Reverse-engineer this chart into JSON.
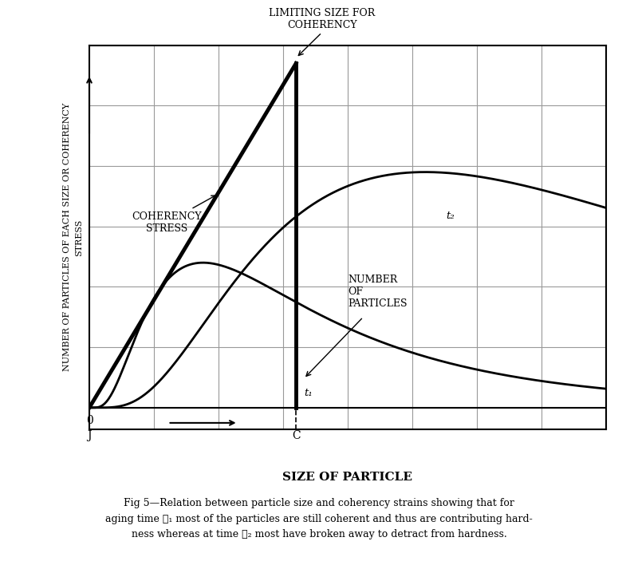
{
  "xlabel": "SIZE OF PARTICLE",
  "ylabel": "NUMBER OF PARTICLES OF EACH SIZE OR COHERENCY\nSTRESS",
  "xlim": [
    0,
    10
  ],
  "ylim": [
    -0.6,
    10
  ],
  "background_color": "#ffffff",
  "grid_color": "#999999",
  "coherency_stress_label": "COHERENCY\nSTRESS",
  "t1_label": "t₁",
  "t2_label": "t₂",
  "number_of_particles_label": "NUMBER\nOF\nPARTICLES",
  "limiting_size_label": "LIMITING SIZE FOR\nCOHERENCY",
  "x_axis_origin": "J",
  "x_axis_c": "C",
  "origin_zero": "0",
  "coherency_x_end": 4.0,
  "coherency_y_end": 9.5,
  "t1_peak_x": 2.2,
  "t1_peak_y": 4.0,
  "t2_peak_x": 6.5,
  "t2_peak_y": 6.5,
  "n_vlines": 8,
  "n_hlines": 6,
  "fig_caption_line1": "Fig 5—Relation between particle size and coherency strains showing that for",
  "fig_caption_line2": "aging time ℓ₁ most of the particles are still coherent and thus are contributing hard-",
  "fig_caption_line3": "ness whereas at time ℓ₂ most have broken away to detract from hardness."
}
